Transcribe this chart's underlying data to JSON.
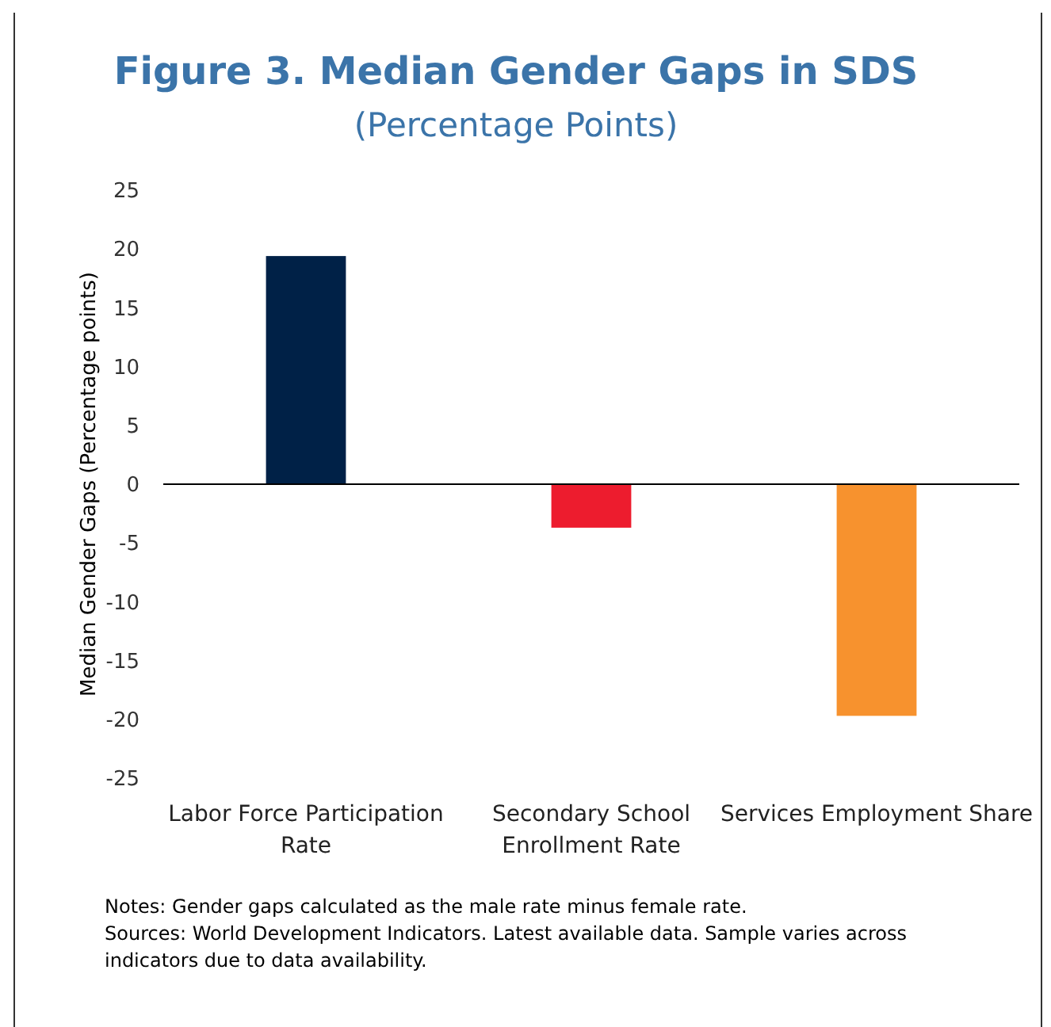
{
  "chart_data": {
    "type": "bar",
    "title": "Figure 3. Median Gender Gaps in SDS",
    "subtitle": "(Percentage Points)",
    "ylabel": "Median Gender Gaps (Percentage points)",
    "categories": [
      "Labor Force Participation Rate",
      "Secondary School Enrollment Rate",
      "Services Employment Share"
    ],
    "values": [
      19.4,
      -3.7,
      -19.7
    ],
    "colors": [
      "#002147",
      "#ed1c2e",
      "#f7922e"
    ],
    "ylim": [
      -25,
      25
    ],
    "yticks": [
      -25,
      -20,
      -15,
      -10,
      -5,
      0,
      5,
      10,
      15,
      20,
      25
    ],
    "annotations": [
      "Notes: Gender gaps calculated as the male rate minus female rate.",
      "Sources: World Development Indicators. Latest available data. Sample varies across indicators due to data availability."
    ]
  }
}
